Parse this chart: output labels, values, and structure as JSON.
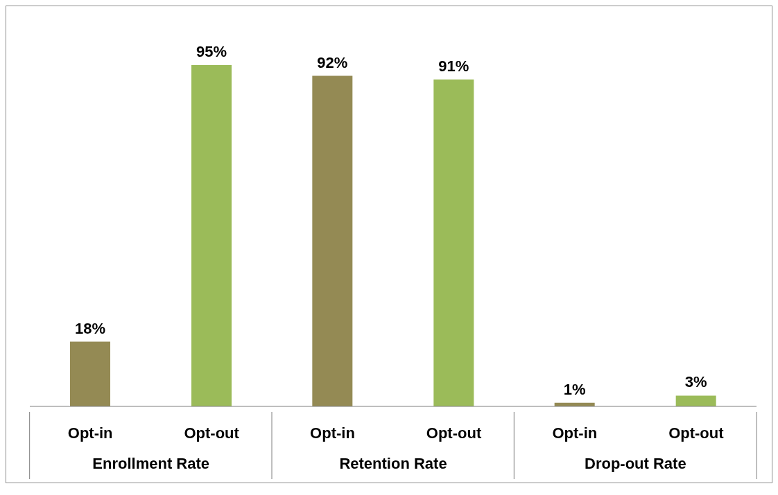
{
  "chart_data": {
    "type": "bar",
    "categories": [
      "Enrollment Rate",
      "Retention Rate",
      "Drop-out Rate"
    ],
    "series": [
      {
        "name": "Opt-in",
        "color": "#948a54",
        "values": [
          18,
          92,
          1
        ],
        "value_labels": [
          "18%",
          "92%",
          "1%"
        ]
      },
      {
        "name": "Opt-out",
        "color": "#9bbb59",
        "values": [
          95,
          91,
          3
        ],
        "value_labels": [
          "95%",
          "91%",
          "3%"
        ]
      }
    ],
    "grid": false,
    "legend": false
  }
}
